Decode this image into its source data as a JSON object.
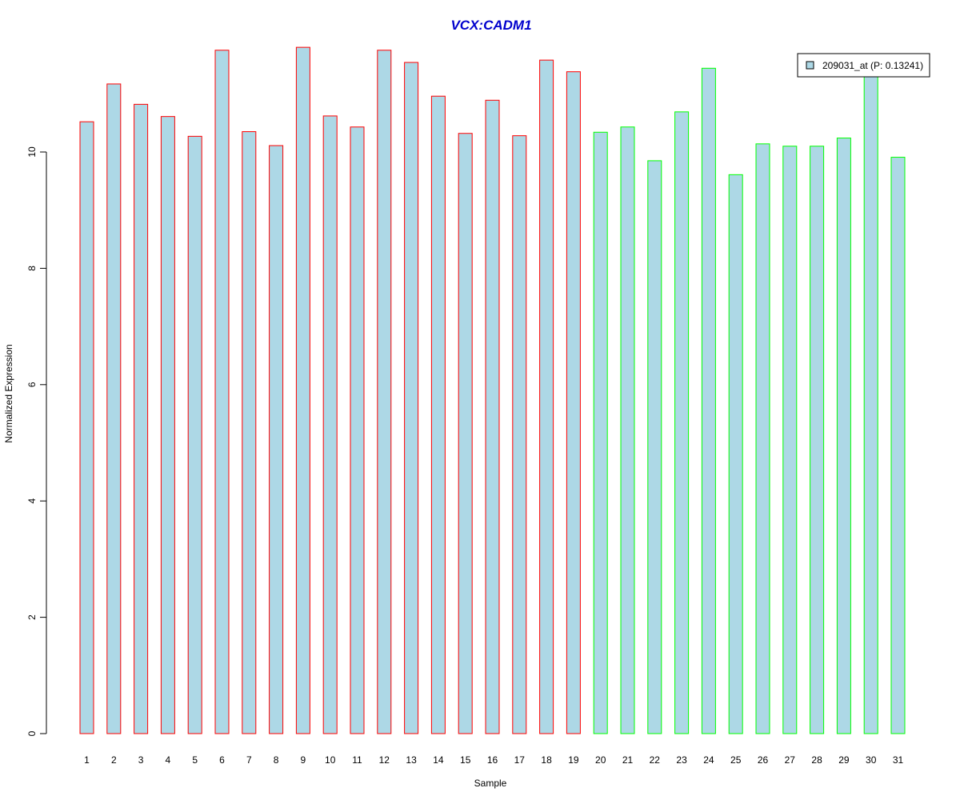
{
  "chart_data": {
    "type": "bar",
    "title": "VCX:CADM1",
    "xlabel": "Sample",
    "ylabel": "Normalized Expression",
    "ylim": [
      0,
      11.8
    ],
    "yticks": [
      0,
      2,
      4,
      6,
      8,
      10
    ],
    "grid": false,
    "legend": {
      "placement": "top-right",
      "entries": [
        "209031_at (P: 0.13241)"
      ]
    },
    "categories": [
      "1",
      "2",
      "3",
      "4",
      "5",
      "6",
      "7",
      "8",
      "9",
      "10",
      "11",
      "12",
      "13",
      "14",
      "15",
      "16",
      "17",
      "18",
      "19",
      "20",
      "21",
      "22",
      "23",
      "24",
      "25",
      "26",
      "27",
      "28",
      "29",
      "30",
      "31"
    ],
    "values": [
      10.52,
      11.17,
      10.82,
      10.61,
      10.27,
      11.75,
      10.35,
      10.11,
      11.8,
      10.62,
      10.43,
      11.75,
      11.54,
      10.96,
      10.32,
      10.89,
      10.28,
      11.58,
      11.38,
      10.34,
      10.43,
      9.85,
      10.69,
      11.44,
      9.61,
      10.14,
      10.1,
      10.1,
      10.24,
      11.4,
      9.91
    ],
    "groups": [
      1,
      1,
      1,
      1,
      1,
      1,
      1,
      1,
      1,
      1,
      1,
      1,
      1,
      1,
      1,
      1,
      1,
      1,
      1,
      2,
      2,
      2,
      2,
      2,
      2,
      2,
      2,
      2,
      2,
      2,
      2
    ],
    "colors": {
      "bar_fill": "#add8e6",
      "group1_border": "#ff0000",
      "group2_border": "#00ff00",
      "title": "#0000cd"
    }
  }
}
